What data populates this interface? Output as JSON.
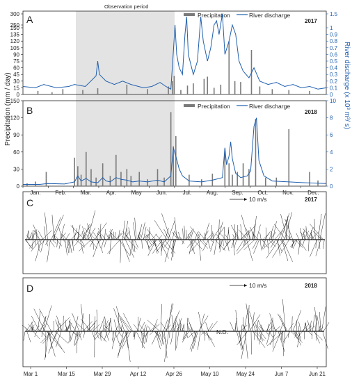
{
  "chart_data": [
    {
      "panel": "A",
      "type": "bar",
      "year": "2017",
      "observation_label": "Observation period",
      "observation_range": [
        "Mar.",
        "Jun. end"
      ],
      "legend": [
        "Precipitation",
        "River discharge"
      ],
      "ylabel_left": "Precipitation (mm / day)",
      "ylabel_right": "River discharge (x 10³ m³/ s)",
      "y_left_ticks": [
        "0",
        "15",
        "30",
        "45",
        "60",
        "75",
        "90",
        "105",
        "120",
        "135",
        "150",
        "250",
        "300"
      ],
      "y_right_ticks": [
        "0",
        "0.1",
        "0.2",
        "0.3",
        "0.4",
        "0.5",
        "0.6",
        "0.7",
        "0.8",
        "0.9",
        "1",
        "1.5"
      ],
      "ylim_left": [
        0,
        300
      ],
      "ylim_right": [
        0,
        1.5
      ],
      "precip_bars": [
        [
          18,
          8
        ],
        [
          35,
          5
        ],
        [
          48,
          12
        ],
        [
          72,
          10
        ],
        [
          90,
          14
        ],
        [
          125,
          22
        ],
        [
          150,
          12
        ],
        [
          175,
          18
        ],
        [
          180,
          30
        ],
        [
          182,
          42
        ],
        [
          190,
          10
        ],
        [
          198,
          20
        ],
        [
          205,
          25
        ],
        [
          218,
          35
        ],
        [
          222,
          40
        ],
        [
          230,
          15
        ],
        [
          238,
          22
        ],
        [
          248,
          120
        ],
        [
          255,
          30
        ],
        [
          262,
          28
        ],
        [
          275,
          100
        ],
        [
          285,
          18
        ],
        [
          300,
          12
        ],
        [
          320,
          10
        ],
        [
          345,
          8
        ]
      ],
      "discharge": [
        [
          0,
          0.12
        ],
        [
          15,
          0.1
        ],
        [
          25,
          0.15
        ],
        [
          40,
          0.1
        ],
        [
          55,
          0.12
        ],
        [
          62,
          0.15
        ],
        [
          75,
          0.12
        ],
        [
          80,
          0.18
        ],
        [
          88,
          0.28
        ],
        [
          90,
          0.5
        ],
        [
          92,
          0.3
        ],
        [
          100,
          0.2
        ],
        [
          110,
          0.15
        ],
        [
          120,
          0.2
        ],
        [
          130,
          0.15
        ],
        [
          145,
          0.1
        ],
        [
          155,
          0.12
        ],
        [
          165,
          0.18
        ],
        [
          172,
          0.12
        ],
        [
          178,
          0.08
        ],
        [
          180,
          0.45
        ],
        [
          183,
          1.1
        ],
        [
          185,
          0.6
        ],
        [
          188,
          0.4
        ],
        [
          192,
          0.3
        ],
        [
          195,
          0.9
        ],
        [
          197,
          1.4
        ],
        [
          199,
          0.6
        ],
        [
          205,
          0.3
        ],
        [
          210,
          0.5
        ],
        [
          214,
          1.4
        ],
        [
          217,
          0.8
        ],
        [
          222,
          0.5
        ],
        [
          226,
          0.7
        ],
        [
          230,
          1.1
        ],
        [
          233,
          1.25
        ],
        [
          236,
          0.9
        ],
        [
          240,
          1.5
        ],
        [
          243,
          0.6
        ],
        [
          248,
          0.8
        ],
        [
          252,
          1.1
        ],
        [
          256,
          0.9
        ],
        [
          260,
          0.5
        ],
        [
          265,
          0.35
        ],
        [
          272,
          0.25
        ],
        [
          278,
          0.4
        ],
        [
          285,
          0.2
        ],
        [
          295,
          0.15
        ],
        [
          305,
          0.18
        ],
        [
          315,
          0.12
        ],
        [
          325,
          0.15
        ],
        [
          335,
          0.1
        ],
        [
          345,
          0.12
        ],
        [
          355,
          0.08
        ],
        [
          365,
          0.1
        ]
      ]
    },
    {
      "panel": "B",
      "type": "bar",
      "year": "2018",
      "legend": [
        "Precipitation",
        "River discharge"
      ],
      "y_left_ticks": [
        "0",
        "30",
        "60",
        "90",
        "120",
        "150"
      ],
      "y_right_ticks": [
        "0",
        "2",
        "4",
        "6",
        "8",
        "10"
      ],
      "ylim_left": [
        0,
        150
      ],
      "ylim_right": [
        0,
        10
      ],
      "x_ticks": [
        "Jan.",
        "Feb.",
        "Mar.",
        "Apr.",
        "May",
        "Jun.",
        "Jul.",
        "Aug.",
        "Sep.",
        "Oct.",
        "Nov.",
        "Dec."
      ],
      "precip_bars": [
        [
          5,
          5
        ],
        [
          15,
          8
        ],
        [
          28,
          25
        ],
        [
          62,
          50
        ],
        [
          66,
          35
        ],
        [
          70,
          20
        ],
        [
          76,
          60
        ],
        [
          82,
          30
        ],
        [
          88,
          15
        ],
        [
          96,
          40
        ],
        [
          105,
          18
        ],
        [
          112,
          55
        ],
        [
          118,
          25
        ],
        [
          125,
          30
        ],
        [
          130,
          18
        ],
        [
          140,
          25
        ],
        [
          150,
          12
        ],
        [
          162,
          30
        ],
        [
          170,
          15
        ],
        [
          178,
          130
        ],
        [
          181,
          70
        ],
        [
          184,
          88
        ],
        [
          200,
          20
        ],
        [
          215,
          12
        ],
        [
          228,
          22
        ],
        [
          243,
          65
        ],
        [
          248,
          40
        ],
        [
          252,
          20
        ],
        [
          258,
          25
        ],
        [
          265,
          40
        ],
        [
          272,
          30
        ],
        [
          280,
          118
        ],
        [
          292,
          15
        ],
        [
          305,
          15
        ],
        [
          320,
          100
        ],
        [
          345,
          25
        ],
        [
          355,
          10
        ]
      ],
      "discharge": [
        [
          0,
          0.2
        ],
        [
          20,
          0.2
        ],
        [
          30,
          0.3
        ],
        [
          50,
          0.25
        ],
        [
          62,
          0.5
        ],
        [
          66,
          1.2
        ],
        [
          70,
          0.6
        ],
        [
          76,
          0.9
        ],
        [
          82,
          0.5
        ],
        [
          90,
          0.4
        ],
        [
          96,
          1.0
        ],
        [
          100,
          0.6
        ],
        [
          105,
          0.5
        ],
        [
          112,
          1.0
        ],
        [
          118,
          0.8
        ],
        [
          125,
          0.7
        ],
        [
          132,
          0.5
        ],
        [
          140,
          0.6
        ],
        [
          150,
          0.5
        ],
        [
          162,
          0.7
        ],
        [
          170,
          0.5
        ],
        [
          178,
          1.2
        ],
        [
          181,
          4.5
        ],
        [
          184,
          3.5
        ],
        [
          188,
          2.0
        ],
        [
          192,
          1.2
        ],
        [
          200,
          0.6
        ],
        [
          215,
          0.5
        ],
        [
          228,
          0.7
        ],
        [
          240,
          1.0
        ],
        [
          243,
          4.5
        ],
        [
          245,
          2.5
        ],
        [
          248,
          3.5
        ],
        [
          250,
          5.2
        ],
        [
          252,
          3.2
        ],
        [
          256,
          1.5
        ],
        [
          262,
          1.0
        ],
        [
          270,
          1.2
        ],
        [
          274,
          1.8
        ],
        [
          278,
          7.0
        ],
        [
          281,
          8.0
        ],
        [
          284,
          3.0
        ],
        [
          290,
          1.2
        ],
        [
          300,
          0.6
        ],
        [
          320,
          0.5
        ],
        [
          340,
          0.4
        ],
        [
          365,
          0.3
        ]
      ]
    },
    {
      "panel": "C",
      "type": "scatter",
      "year": "2017",
      "scale_label": "10 m/s",
      "note": "wind vector stick plot"
    },
    {
      "panel": "D",
      "type": "scatter",
      "year": "2018",
      "scale_label": "10 m/s",
      "nd_label": "N.D.",
      "x_ticks": [
        "Mar 1",
        "Mar 15",
        "Mar 29",
        "Apr 12",
        "Apr 26",
        "May 10",
        "May 24",
        "Jun 7",
        "Jun 21"
      ]
    }
  ],
  "colors": {
    "precip": "#7a7a7a",
    "discharge": "#1f5fae",
    "shade": "#e3e3e3",
    "arrows": "#111111"
  }
}
